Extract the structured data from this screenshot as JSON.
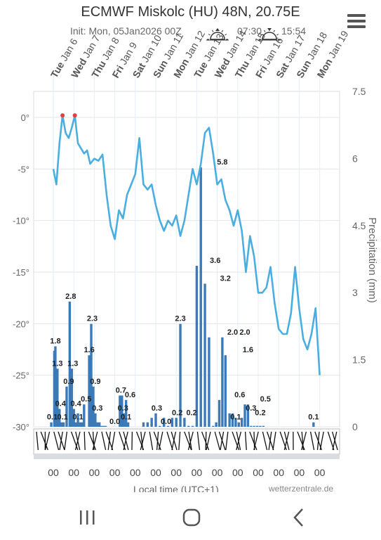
{
  "header": {
    "title": "ECMWF Miskolc (HU) 48N, 20.75E",
    "init": "Init: Mon, 05Jan2026 00Z",
    "sunrise": "07:30",
    "sunset": "15:54",
    "menu_icon": "hamburger-menu-icon"
  },
  "footer": {
    "xlabel": "Local time (UTC+1)",
    "credit": "wetterzentrale.de"
  },
  "navbar": {
    "icons": [
      "recent-apps-icon",
      "home-icon",
      "back-icon"
    ]
  },
  "colors": {
    "temperature": "#4aaee0",
    "precip": "#3a7ab8",
    "above_zero": "#e04040"
  },
  "chart_data": {
    "type": "line+bar",
    "day_labels": [
      "Tue Jan 6",
      "Wed Jan 7",
      "Thu Jan 8",
      "Fri Jan 9",
      "Sat Jan 10",
      "Sun Jan 11",
      "Mon Jan 12",
      "Tue Jan 13",
      "Wed Jan 14",
      "Thu Jan 15",
      "Fri Jan 16",
      "Sat Jan 17",
      "Sun Jan 18",
      "Mon Jan 19"
    ],
    "temperature": {
      "ylim": [
        -30,
        0
      ],
      "yticks": [
        "0°",
        "-5°",
        "-10°",
        "-15°",
        "-20°",
        "-25°",
        "-30°"
      ],
      "x_days": [
        0,
        0.15,
        0.3,
        0.45,
        0.6,
        0.75,
        0.9,
        1.05,
        1.2,
        1.35,
        1.5,
        1.65,
        1.8,
        2.0,
        2.2,
        2.4,
        2.6,
        2.8,
        3.0,
        3.2,
        3.4,
        3.6,
        3.8,
        4.0,
        4.2,
        4.4,
        4.6,
        4.8,
        5.0,
        5.2,
        5.4,
        5.6,
        5.8,
        6.0,
        6.2,
        6.4,
        6.6,
        6.8,
        7.0,
        7.2,
        7.4,
        7.6,
        7.8,
        8.0,
        8.2,
        8.4,
        8.6,
        8.8,
        9.0,
        9.2,
        9.4,
        9.6,
        9.8,
        10.0,
        10.2,
        10.4,
        10.6,
        10.8,
        11.0,
        11.2,
        11.4,
        11.6,
        11.8,
        12.0,
        12.2,
        12.4,
        12.6,
        12.8,
        13.0
      ],
      "values": [
        -5.0,
        -6.5,
        -2.5,
        0.2,
        -1.5,
        -2.0,
        -1.0,
        0.2,
        -2.5,
        -3.0,
        -3.5,
        -3.2,
        -4.5,
        -4.0,
        -4.2,
        -3.6,
        -7.5,
        -10.5,
        -11.8,
        -9.0,
        -9.8,
        -7.5,
        -6.5,
        -5.5,
        -2.0,
        -6.5,
        -7.0,
        -6.5,
        -8.5,
        -10.0,
        -11.0,
        -10.0,
        -10.5,
        -9.5,
        -11.5,
        -10.0,
        -7.5,
        -5.0,
        -6.5,
        -4.5,
        -1.5,
        -1.0,
        -3.5,
        -6.5,
        -6.0,
        -8.0,
        -9.0,
        -10.5,
        -9.0,
        -11.0,
        -15.0,
        -11.5,
        -13.5,
        -17.0,
        -17.0,
        -16.5,
        -14.5,
        -18.0,
        -20.5,
        -21.0,
        -21.0,
        -19.0,
        -14.5,
        -18.5,
        -21.5,
        -22.5,
        -21.0,
        -18.5,
        -25.0
      ]
    },
    "precipitation": {
      "ylim": [
        0,
        7.5
      ],
      "ylabel": "Precipitation (mm)",
      "yticks": [
        "7.5",
        "6",
        "4.5",
        "3",
        "1.5",
        "0"
      ],
      "x_days": [
        -0.1,
        0.05,
        0.1,
        0.2,
        0.3,
        0.4,
        0.5,
        0.65,
        0.8,
        0.9,
        1.0,
        1.1,
        1.2,
        1.3,
        1.4,
        1.5,
        1.75,
        1.85,
        1.95,
        2.05,
        2.15,
        2.25,
        2.35,
        2.45,
        2.55,
        3.25,
        3.35,
        3.45,
        3.55,
        3.65,
        4.4,
        4.6,
        4.8,
        5.0,
        5.2,
        5.4,
        5.6,
        5.8,
        6.0,
        6.2,
        6.4,
        6.6,
        6.8,
        7.0,
        7.2,
        7.4,
        7.6,
        7.8,
        7.95,
        8.1,
        8.25,
        8.4,
        8.6,
        8.75,
        8.9,
        9.05,
        9.2,
        9.35,
        9.5,
        9.65,
        9.8,
        9.95,
        10.1,
        10.25,
        12.7
      ],
      "values": [
        0.1,
        1.7,
        1.8,
        1.3,
        0.4,
        0.1,
        0.1,
        0.9,
        2.8,
        1.3,
        0.4,
        0.1,
        0.3,
        0.1,
        0.1,
        0.5,
        1.6,
        2.3,
        0.9,
        0.3,
        0.1,
        0.1,
        0.0,
        0.0,
        0.0,
        0.7,
        0.7,
        0.3,
        0.6,
        0.1,
        0.1,
        0.1,
        0.2,
        0.3,
        0.0,
        0.2,
        0.0,
        0.2,
        0.2,
        2.3,
        0.2,
        0.0,
        0.0,
        3.6,
        5.8,
        3.2,
        2.0,
        0.0,
        0.1,
        0.6,
        2.0,
        1.6,
        0.3,
        0.3,
        0.2,
        0.1,
        0.2,
        0.5,
        0.5,
        0.0,
        0.0,
        0.0,
        0.0,
        0.0,
        0.1
      ]
    },
    "bar_labels": [
      {
        "day": -0.05,
        "text": "0.1"
      },
      {
        "day": 0.1,
        "text": "1.8"
      },
      {
        "day": 0.2,
        "text": "1.3"
      },
      {
        "day": 0.35,
        "text": "0.4"
      },
      {
        "day": 0.45,
        "text": "0.1"
      },
      {
        "day": 0.85,
        "text": "2.8"
      },
      {
        "day": 0.75,
        "text": "0.9"
      },
      {
        "day": 0.95,
        "text": "1.3"
      },
      {
        "day": 1.1,
        "text": "0.4"
      },
      {
        "day": 1.2,
        "text": "0.1"
      },
      {
        "day": 1.6,
        "text": "0.5"
      },
      {
        "day": 1.75,
        "text": "1.6"
      },
      {
        "day": 1.9,
        "text": "2.3"
      },
      {
        "day": 2.05,
        "text": "0.9"
      },
      {
        "day": 2.15,
        "text": "0.3"
      },
      {
        "day": 3.0,
        "text": "0.0"
      },
      {
        "day": 3.3,
        "text": "0.7"
      },
      {
        "day": 3.4,
        "text": "0.3"
      },
      {
        "day": 3.75,
        "text": "0.6"
      },
      {
        "day": 3.55,
        "text": "0.1"
      },
      {
        "day": 5.05,
        "text": "0.3"
      },
      {
        "day": 5.5,
        "text": "0.0"
      },
      {
        "day": 6.05,
        "text": "0.2"
      },
      {
        "day": 6.75,
        "text": "0.2"
      },
      {
        "day": 6.2,
        "text": "2.3"
      },
      {
        "day": 7.9,
        "text": "3.6"
      },
      {
        "day": 8.25,
        "text": "5.8"
      },
      {
        "day": 8.4,
        "text": "3.2"
      },
      {
        "day": 8.75,
        "text": "2.0"
      },
      {
        "day": 8.9,
        "text": "0.1"
      },
      {
        "day": 9.1,
        "text": "0.6"
      },
      {
        "day": 9.35,
        "text": "2.0"
      },
      {
        "day": 9.5,
        "text": "1.6"
      },
      {
        "day": 9.65,
        "text": "0.3"
      },
      {
        "day": 10.1,
        "text": "0.2"
      },
      {
        "day": 10.35,
        "text": "0.5"
      },
      {
        "day": 12.7,
        "text": "0.1"
      }
    ],
    "time_ticks": [
      "00",
      "00",
      "00",
      "00",
      "00",
      "00",
      "00",
      "00",
      "00",
      "00",
      "00",
      "00",
      "00",
      "00"
    ]
  }
}
